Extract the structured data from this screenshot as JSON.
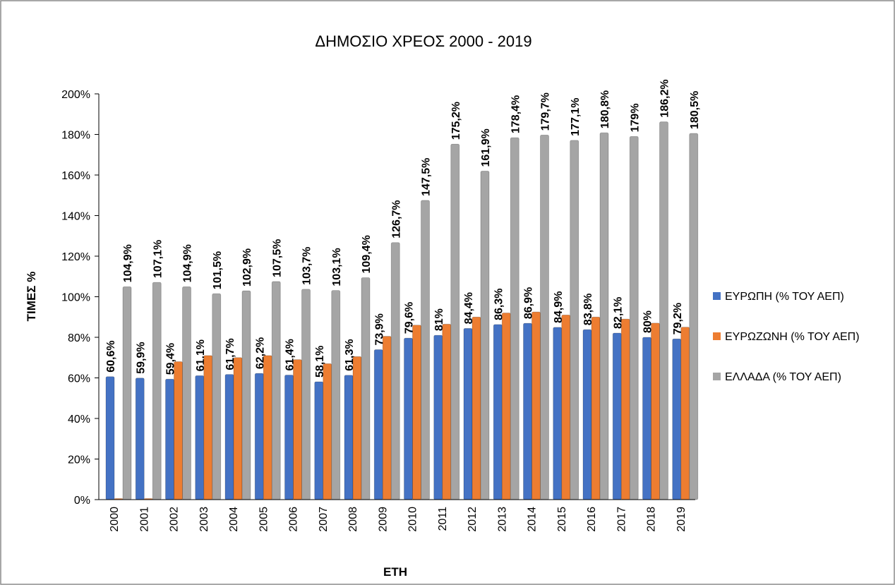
{
  "chart_data": {
    "type": "bar",
    "title": "ΔΗΜΟΣΙΟ ΧΡΕΟΣ 2000 - 2019",
    "x_label": "ΕΤΗ",
    "y_label": "ΤΙΜΕΣ %",
    "categories": [
      "2000",
      "2001",
      "2002",
      "2003",
      "2004",
      "2005",
      "2006",
      "2007",
      "2008",
      "2009",
      "2010",
      "2011",
      "2012",
      "2013",
      "2014",
      "2015",
      "2016",
      "2017",
      "2018",
      "2019"
    ],
    "series": [
      {
        "name": "ΕΥΡΩΠΗ (% ΤΟΥ ΑΕΠ)",
        "color": "#4472c4",
        "values": [
          60.6,
          59.9,
          59.4,
          61.1,
          61.7,
          62.2,
          61.4,
          58.1,
          61.3,
          73.9,
          79.6,
          81,
          84.4,
          86.3,
          86.9,
          84.9,
          83.8,
          82.1,
          80,
          79.2
        ],
        "value_labels": [
          "60,6%",
          "59,9%",
          "59,4%",
          "61,1%",
          "61,7%",
          "62,2%",
          "61,4%",
          "58,1%",
          "61,3%",
          "73,9%",
          "79,6%",
          "81%",
          "84,4%",
          "86,3%",
          "86,9%",
          "84,9%",
          "83,8%",
          "82,1%",
          "80%",
          "79,2%"
        ]
      },
      {
        "name": "ΕΥΡΩΖΩΝΗ (% ΤΟΥ ΑΕΠ)",
        "color": "#ed7d31",
        "values": [
          0,
          0,
          68,
          71,
          70,
          71,
          69,
          67,
          70.5,
          80.5,
          86,
          86.5,
          90,
          92,
          92.5,
          91,
          90,
          89,
          87,
          85
        ]
      },
      {
        "name": "ΕΛΛΑΔΑ (% ΤΟΥ ΑΕΠ)",
        "color": "#a5a5a5",
        "values": [
          104.9,
          107.1,
          104.9,
          101.5,
          102.9,
          107.5,
          103.7,
          103.1,
          109.4,
          126.7,
          147.5,
          175.2,
          161.9,
          178.4,
          179.7,
          177.1,
          180.8,
          179,
          186.2,
          180.5
        ],
        "value_labels": [
          "104,9%",
          "107,1%",
          "104,9%",
          "101,5%",
          "102,9%",
          "107,5%",
          "103,7%",
          "103,1%",
          "109,4%",
          "126,7%",
          "147,5%",
          "175,2%",
          "161,9%",
          "178,4%",
          "179,7%",
          "177,1%",
          "180,8%",
          "179%",
          "186,2%",
          "180,5%"
        ]
      }
    ],
    "ylim": [
      0,
      200
    ],
    "yticks": [
      {
        "value": 0,
        "label": "0%"
      },
      {
        "value": 20,
        "label": "20%"
      },
      {
        "value": 40,
        "label": "40%"
      },
      {
        "value": 60,
        "label": "60%"
      },
      {
        "value": 80,
        "label": "80%"
      },
      {
        "value": 100,
        "label": "100%"
      },
      {
        "value": 120,
        "label": "120%"
      },
      {
        "value": 140,
        "label": "140%"
      },
      {
        "value": 160,
        "label": "160%"
      },
      {
        "value": 180,
        "label": "180%"
      },
      {
        "value": 200,
        "label": "200%"
      }
    ],
    "legend": "right"
  }
}
